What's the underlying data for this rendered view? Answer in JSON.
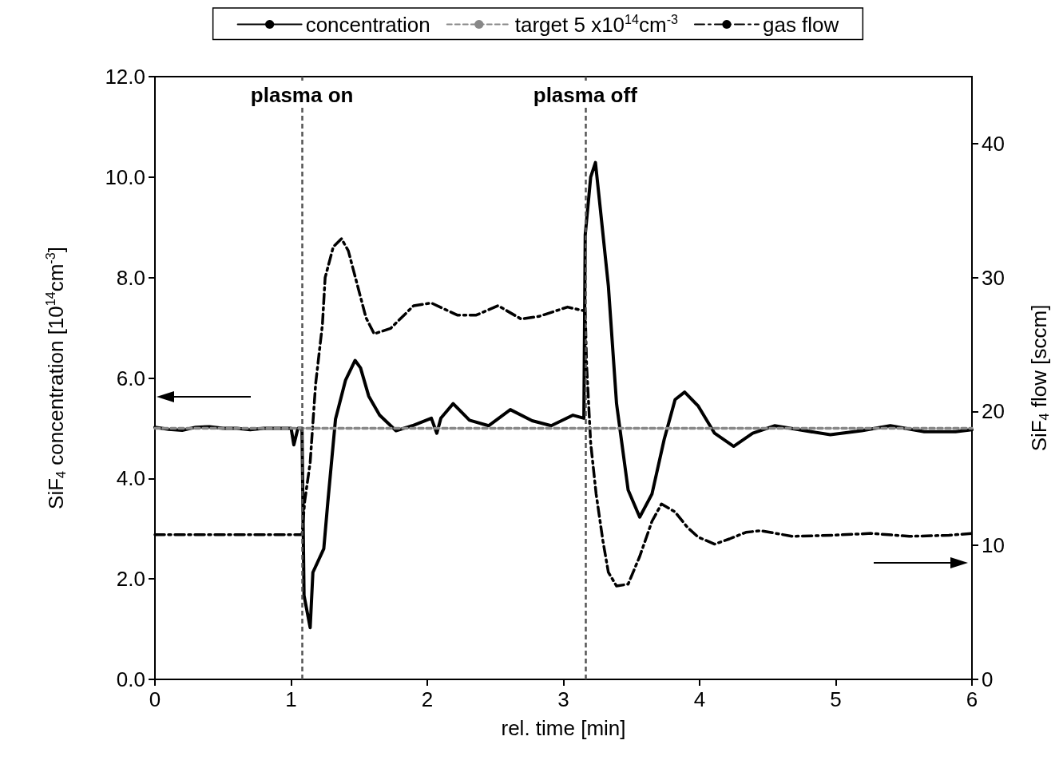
{
  "chart_data": {
    "type": "line",
    "xlabel": "rel. time [min]",
    "ylabel": "SiF$_{4}$ concentration [10$^{14}$cm$^{-3}$]",
    "y2label": "SiF$_{4}$ flow [sccm]",
    "xlim": [
      0,
      6
    ],
    "xticks": [
      0,
      1,
      2,
      3,
      4,
      5,
      6
    ],
    "ylim": [
      0,
      12
    ],
    "yticks": [
      {
        "value": 0,
        "label": "0.0"
      },
      {
        "value": 2,
        "label": "2.0"
      },
      {
        "value": 4,
        "label": "4.0"
      },
      {
        "value": 6,
        "label": "6.0"
      },
      {
        "value": 8,
        "label": "8.0"
      },
      {
        "value": 10,
        "label": "10.0"
      },
      {
        "value": 12,
        "label": "12.0"
      }
    ],
    "y2lim": [
      0,
      45
    ],
    "y2ticks": [
      0,
      10,
      20,
      30,
      40
    ],
    "legend": "top",
    "grid": false,
    "marker": "none",
    "ref_lines": [
      {
        "axis": "x",
        "value": 1.08,
        "label": "plasma on",
        "color": "#555555",
        "line_style": "dashed"
      },
      {
        "axis": "x",
        "value": 3.16,
        "label": "plasma off",
        "color": "#555555",
        "line_style": "dashed"
      }
    ],
    "series": [
      {
        "name": "concentration",
        "color": "#000000",
        "line_style": "solid",
        "x": [
          0,
          0.1,
          0.2,
          0.3,
          0.4,
          0.5,
          0.6,
          0.7,
          0.8,
          0.9,
          1.0,
          1.02,
          1.05,
          1.08,
          1.095,
          1.14,
          1.16,
          1.24,
          1.27,
          1.326,
          1.4,
          1.47,
          1.51,
          1.57,
          1.65,
          1.77,
          1.89,
          2.03,
          2.07,
          2.1,
          2.19,
          2.31,
          2.45,
          2.61,
          2.77,
          2.91,
          3.07,
          3.15,
          3.16,
          3.2,
          3.235,
          3.27,
          3.33,
          3.39,
          3.475,
          3.56,
          3.65,
          3.74,
          3.82,
          3.89,
          3.99,
          4.11,
          4.25,
          4.39,
          4.55,
          4.73,
          4.96,
          5.19,
          5.4,
          5.65,
          5.88,
          6.0
        ],
        "values": [
          5.02,
          4.98,
          4.96,
          5.02,
          5.03,
          5.0,
          5.0,
          4.97,
          5.0,
          5.0,
          5.0,
          4.67,
          5.0,
          5.0,
          1.67,
          1.03,
          2.13,
          2.6,
          3.54,
          5.18,
          5.96,
          6.35,
          6.2,
          5.64,
          5.26,
          4.95,
          5.05,
          5.2,
          4.9,
          5.2,
          5.49,
          5.16,
          5.05,
          5.37,
          5.15,
          5.05,
          5.26,
          5.2,
          8.85,
          10.0,
          10.29,
          9.39,
          7.83,
          5.49,
          3.77,
          3.23,
          3.69,
          4.78,
          5.57,
          5.72,
          5.44,
          4.9,
          4.64,
          4.9,
          5.05,
          4.97,
          4.87,
          4.95,
          5.05,
          4.93,
          4.93,
          4.97
        ]
      },
      {
        "name": "target 5 x10$^{14}$cm$^{-3}$",
        "color": "#888888",
        "line_style": "dashed",
        "x": [
          0,
          6
        ],
        "values": [
          5,
          5
        ]
      },
      {
        "name": "gas flow",
        "color": "#000000",
        "line_style": "dashdot",
        "axis": "y2",
        "x": [
          0,
          0.5,
          1.0,
          1.08,
          1.1,
          1.14,
          1.18,
          1.23,
          1.25,
          1.31,
          1.37,
          1.42,
          1.48,
          1.55,
          1.61,
          1.73,
          1.9,
          2.03,
          2.22,
          2.36,
          2.52,
          2.69,
          2.82,
          3.03,
          3.07,
          3.16,
          3.17,
          3.2,
          3.24,
          3.29,
          3.33,
          3.39,
          3.475,
          3.56,
          3.65,
          3.72,
          3.82,
          3.91,
          3.99,
          4.11,
          4.22,
          4.34,
          4.45,
          4.68,
          4.97,
          5.26,
          5.54,
          5.83,
          6.0
        ],
        "values": [
          10.8,
          10.8,
          10.8,
          10.8,
          13.3,
          16.2,
          22.05,
          26.5,
          30.0,
          32.3,
          32.9,
          32.0,
          29.7,
          27.0,
          25.8,
          26.2,
          27.9,
          28.1,
          27.2,
          27.2,
          27.9,
          26.9,
          27.1,
          27.8,
          27.7,
          27.5,
          23.5,
          17.65,
          13.85,
          10.33,
          7.99,
          6.97,
          7.11,
          9.18,
          11.8,
          13.1,
          12.5,
          11.35,
          10.62,
          10.1,
          10.49,
          10.98,
          11.1,
          10.68,
          10.76,
          10.9,
          10.68,
          10.76,
          10.9
        ]
      }
    ]
  }
}
